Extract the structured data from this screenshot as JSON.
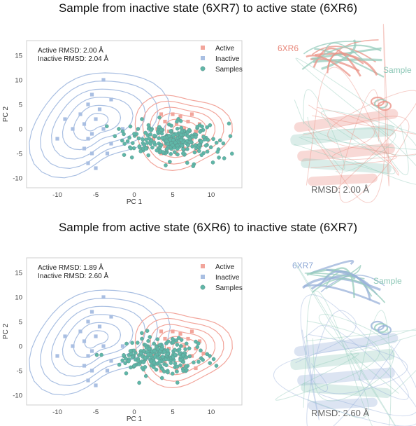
{
  "panels": [
    {
      "title": "Sample from inactive state (6XR7) to active state (6XR6)",
      "rmsd_lines": [
        "Active RMSD: 2.00 Å",
        "Inactive RMSD: 2.04 Å"
      ],
      "structure": {
        "reference_label": "6XR6",
        "sample_label": "Sample",
        "rmsd_caption": "RMSD: 2.00 Å",
        "reference_color": "#e8877a",
        "sample_color": "#8cc7b6"
      }
    },
    {
      "title": "Sample from active state (6XR6) to inactive state (6XR7)",
      "rmsd_lines": [
        "Active RMSD: 1.89 Å",
        "Inactive RMSD: 2.60 Å"
      ],
      "structure": {
        "reference_label": "6XR7",
        "sample_label": "Sample",
        "rmsd_caption": "RMSD: 2.60 Å",
        "reference_color": "#8fa9d6",
        "sample_color": "#8cc7b6"
      }
    }
  ],
  "colors": {
    "active": "#f2a59b",
    "inactive": "#a9bfe2",
    "samples": "#5fb7a8"
  },
  "chart_data": [
    {
      "type": "scatter",
      "xlabel": "PC 1",
      "ylabel": "PC 2",
      "xlim": [
        -14,
        14
      ],
      "ylim": [
        -12,
        18
      ],
      "xticks": [
        -10,
        -5,
        0,
        5,
        10
      ],
      "yticks": [
        -10,
        -5,
        0,
        5,
        10,
        15
      ],
      "grid": false,
      "legend": "top-right",
      "series": [
        {
          "name": "Active",
          "marker": "square",
          "x": [
            3.5,
            5,
            6,
            7.5,
            4,
            5.5,
            7,
            8.5,
            3,
            4.5,
            6.5,
            8,
            5,
            6,
            7.5,
            4,
            6.5,
            3.5,
            5.5,
            8,
            2.5,
            9
          ],
          "y": [
            3,
            3,
            2.5,
            3,
            1.5,
            1,
            1.5,
            1,
            0,
            -0.5,
            0,
            -0.5,
            -2,
            -2.5,
            -2,
            -3.5,
            -4,
            -5,
            -5,
            -4.5,
            -2,
            -1.5
          ]
        },
        {
          "name": "Inactive",
          "marker": "square",
          "x": [
            -4,
            -3,
            -5.5,
            -6,
            -4.5,
            -7,
            -5,
            -9,
            -6.5,
            -8,
            -4,
            -5.5,
            -6,
            -3,
            -10,
            -6.5,
            -5.5,
            -3.5,
            -6,
            -5,
            -1.5
          ],
          "y": [
            10,
            6,
            7,
            5,
            4,
            3,
            2,
            2,
            1,
            0,
            0,
            -1,
            -2,
            -3,
            -2,
            -4,
            -5,
            -5,
            -7,
            -8,
            0
          ]
        },
        {
          "name": "Samples",
          "marker": "circle",
          "cluster": {
            "center": [
              5,
              -2.5
            ],
            "spread": [
              2.8,
              1.7
            ],
            "count": 260
          },
          "x": [
            0.5,
            -0.5,
            -1.5,
            0,
            1,
            -2,
            1.5
          ],
          "y": [
            0,
            0.5,
            -0.5,
            -1,
            2,
            0,
            -4
          ]
        }
      ]
    },
    {
      "type": "scatter",
      "xlabel": "PC 1",
      "ylabel": "PC 2",
      "xlim": [
        -14,
        14
      ],
      "ylim": [
        -12,
        18
      ],
      "xticks": [
        -10,
        -5,
        0,
        5,
        10
      ],
      "yticks": [
        -10,
        -5,
        0,
        5,
        10,
        15
      ],
      "grid": false,
      "legend": "top-right",
      "series": [
        {
          "name": "Active",
          "marker": "square",
          "x": [
            3.5,
            5,
            6,
            7.5,
            4,
            5.5,
            7,
            8.5,
            3,
            4.5,
            6.5,
            8,
            5,
            6,
            7.5,
            4,
            6.5,
            3.5,
            5.5,
            8,
            2.5,
            9
          ],
          "y": [
            3,
            3,
            2.5,
            3,
            1.5,
            1,
            1.5,
            1,
            0,
            -0.5,
            0,
            -0.5,
            -2,
            -2.5,
            -2,
            -3.5,
            -4,
            -5,
            -5,
            -4.5,
            -2,
            -1.5
          ]
        },
        {
          "name": "Inactive",
          "marker": "square",
          "x": [
            -4,
            -3,
            -5.5,
            -6,
            -4.5,
            -7,
            -5,
            -9,
            -6.5,
            -8,
            -4,
            -5.5,
            -6,
            -3,
            -10,
            -6.5,
            -5.5,
            -3.5,
            -6,
            -5,
            -1.5
          ],
          "y": [
            10,
            6,
            7,
            5,
            4,
            3,
            2,
            2,
            1,
            0,
            0,
            -1,
            -2,
            -3,
            -2,
            -4,
            -5,
            -5,
            -7,
            -8,
            0
          ]
        },
        {
          "name": "Samples",
          "marker": "circle",
          "cluster": {
            "center": [
              3.2,
              -2.0
            ],
            "spread": [
              2.5,
              1.6
            ],
            "count": 220
          },
          "x": [
            -0.5,
            -1,
            0.5,
            0,
            1
          ],
          "y": [
            -1,
            0.5,
            -3,
            -4,
            1.5
          ]
        }
      ]
    }
  ]
}
